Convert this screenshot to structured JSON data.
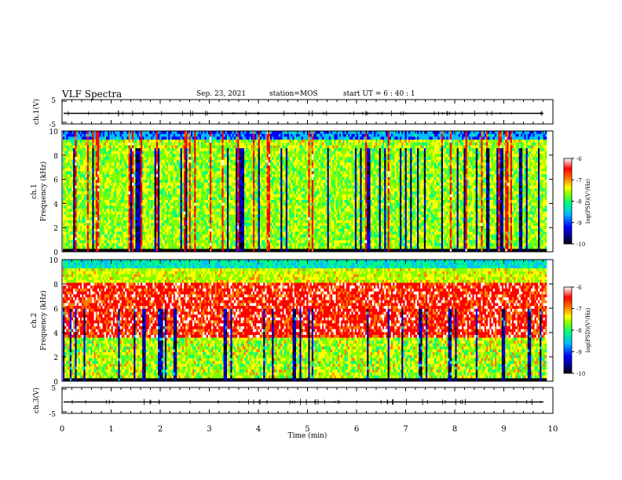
{
  "header": {
    "title": "VLF Spectra",
    "date": "Sep. 23, 2021",
    "station": "station=MOS",
    "start_ut": "start UT =  6 : 40 : 1"
  },
  "colors": {
    "background": "#ffffff",
    "axes": "#000000",
    "colormap": [
      "#000000",
      "#00007f",
      "#0000ff",
      "#00bfff",
      "#00ff7f",
      "#7fff00",
      "#ffff00",
      "#ff7f00",
      "#ff0000",
      "#ffffff"
    ]
  },
  "chart_data": [
    {
      "id": "ch1-waveform",
      "type": "line",
      "ylabel": "ch.1(V)",
      "ylim": [
        -5,
        5
      ],
      "yticks": [
        "5",
        "-5"
      ],
      "xlim": [
        0,
        10
      ],
      "description": "flat trace near 0 V"
    },
    {
      "id": "ch1-spectrogram",
      "type": "heatmap",
      "ylabel_line1": "ch.1",
      "ylabel_line2": "Frequency (kHz)",
      "ylim": [
        0,
        10
      ],
      "yticks": [
        "0",
        "2",
        "4",
        "6",
        "8",
        "10"
      ],
      "xlim": [
        0,
        10
      ],
      "data_end_min": 9.85,
      "colorbar": {
        "label": "log(PSD)(V²/Hz)",
        "min": -10,
        "max": -6,
        "ticks": [
          "-6",
          "-7",
          "-8",
          "-9",
          "-10"
        ]
      }
    },
    {
      "id": "ch2-spectrogram",
      "type": "heatmap",
      "ylabel_line1": "ch.2",
      "ylabel_line2": "Frequency (kHz)",
      "ylim": [
        0,
        10
      ],
      "yticks": [
        "0",
        "2",
        "4",
        "6",
        "8",
        "10"
      ],
      "xlim": [
        0,
        10
      ],
      "data_end_min": 9.85,
      "colorbar": {
        "label": "log(PSD)(V²/Hz)",
        "min": -10,
        "max": -6,
        "ticks": [
          "-6",
          "-7",
          "-8",
          "-9",
          "-10"
        ]
      }
    },
    {
      "id": "ch3-waveform",
      "type": "line",
      "ylabel": "ch.3(V)",
      "ylim": [
        -5,
        5
      ],
      "yticks": [
        "5",
        "-5"
      ],
      "xlim": [
        0,
        10
      ],
      "description": "flat trace near 0 V"
    }
  ],
  "x_axis": {
    "label": "Time (min)",
    "ticks": [
      "0",
      "1",
      "2",
      "3",
      "4",
      "5",
      "6",
      "7",
      "8",
      "9",
      "10"
    ]
  }
}
